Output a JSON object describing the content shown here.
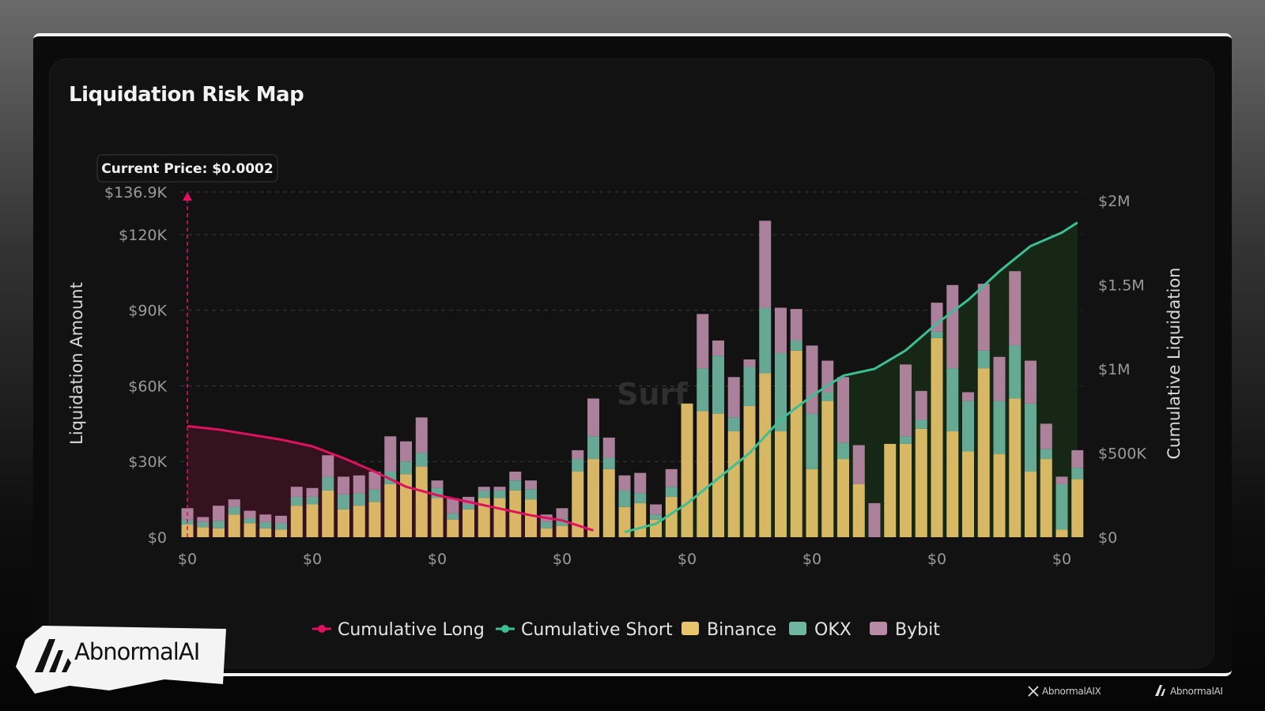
{
  "title": "Liquidation Risk Map",
  "current_price_label": "Current Price: $0.0002",
  "watermark": "Surf",
  "brand": {
    "name": "AbnormalAI",
    "footer_handle": "AbnormalAIX",
    "footer_name": "AbnormalAI"
  },
  "colors": {
    "long": "#e0115f",
    "short": "#3dbf94",
    "binance": "#e8c46c",
    "okx": "#6fb5a0",
    "bybit": "#b98aa6",
    "long_fill": "#3a1420",
    "short_fill": "#172a17"
  },
  "chart_data": {
    "type": "bar",
    "stacked": true,
    "ylabel": "Liquidation Amount",
    "y2label": "Cumulative Liquidation",
    "ylim": [
      0,
      136900
    ],
    "y2lim": [
      0,
      2000000
    ],
    "yticks": [
      {
        "value": 0,
        "label": "$0"
      },
      {
        "value": 30000,
        "label": "$30K"
      },
      {
        "value": 60000,
        "label": "$60K"
      },
      {
        "value": 90000,
        "label": "$90K"
      },
      {
        "value": 120000,
        "label": "$120K"
      },
      {
        "value": 136900,
        "label": "$136.9K"
      }
    ],
    "y2ticks": [
      {
        "value": 0,
        "label": "$0"
      },
      {
        "value": 500000,
        "label": "$500K"
      },
      {
        "value": 1000000,
        "label": "$1M"
      },
      {
        "value": 1500000,
        "label": "$1.5M"
      },
      {
        "value": 2000000,
        "label": "$2M"
      }
    ],
    "xticks": [
      {
        "index": 0,
        "label": "$0"
      },
      {
        "index": 8,
        "label": "$0"
      },
      {
        "index": 16,
        "label": "$0"
      },
      {
        "index": 24,
        "label": "$0"
      },
      {
        "index": 32,
        "label": "$0"
      },
      {
        "index": 40,
        "label": "$0"
      },
      {
        "index": 48,
        "label": "$0"
      },
      {
        "index": 56,
        "label": "$0"
      }
    ],
    "current_price_index": 0,
    "legend_position": "bottom",
    "legend": [
      "Cumulative Long",
      "Cumulative Short",
      "Binance",
      "OKX",
      "Bybit"
    ],
    "series": [
      {
        "name": "Binance",
        "values": [
          5000,
          4000,
          3500,
          9000,
          5500,
          3500,
          3000,
          12500,
          13000,
          18500,
          11000,
          12500,
          14000,
          21000,
          25000,
          28000,
          15500,
          7000,
          11000,
          15500,
          15500,
          18500,
          15000,
          3500,
          4500,
          26000,
          31000,
          27000,
          12000,
          13500,
          7000,
          16000,
          53000,
          50000,
          49000,
          42000,
          52000,
          65000,
          42000,
          74000,
          27000,
          54000,
          31000,
          21000,
          0,
          37000,
          37000,
          43000,
          79000,
          42000,
          34000,
          67000,
          33000,
          55000,
          26000,
          31000,
          3000,
          23000
        ]
      },
      {
        "name": "OKX",
        "values": [
          2000,
          2000,
          3000,
          3000,
          2000,
          2500,
          2500,
          3500,
          3000,
          5500,
          6000,
          5000,
          5000,
          5000,
          5000,
          5500,
          4000,
          2500,
          2000,
          3000,
          3000,
          4000,
          4000,
          2500,
          3000,
          5000,
          9000,
          4500,
          6500,
          4000,
          2000,
          4000,
          0,
          17000,
          23000,
          5500,
          15500,
          26000,
          31000,
          4000,
          22000,
          3500,
          6500,
          0,
          0,
          0,
          3000,
          3500,
          2500,
          25000,
          20000,
          7000,
          21000,
          21000,
          27000,
          4000,
          18000,
          4500
        ]
      },
      {
        "name": "Bybit",
        "values": [
          4500,
          2000,
          6000,
          3000,
          3000,
          3000,
          3000,
          4000,
          3500,
          8500,
          7000,
          7000,
          7000,
          14000,
          8000,
          14000,
          3000,
          6000,
          3000,
          1500,
          1500,
          3500,
          3500,
          3000,
          4000,
          3500,
          15000,
          8000,
          6000,
          8000,
          4000,
          7000,
          0,
          21500,
          6000,
          16000,
          3000,
          34500,
          18000,
          12500,
          27000,
          12500,
          26000,
          15500,
          13500,
          0,
          28500,
          11500,
          11500,
          33000,
          3500,
          26500,
          17500,
          29500,
          17000,
          10000,
          3000,
          7000
        ]
      },
      {
        "name": "Cumulative Long",
        "axis": "y2",
        "x": [
          0,
          2,
          4,
          6,
          8,
          10,
          12,
          14,
          16,
          18,
          20,
          22,
          24,
          26
        ],
        "values": [
          660000,
          640000,
          610000,
          580000,
          540000,
          470000,
          390000,
          300000,
          250000,
          210000,
          170000,
          130000,
          100000,
          40000
        ]
      },
      {
        "name": "Cumulative Short",
        "axis": "y2",
        "x": [
          28,
          30,
          32,
          34,
          36,
          38,
          40,
          42,
          44,
          46,
          48,
          50,
          52,
          54,
          56,
          57
        ],
        "values": [
          30000,
          80000,
          200000,
          350000,
          500000,
          700000,
          840000,
          960000,
          1000000,
          1110000,
          1270000,
          1410000,
          1580000,
          1730000,
          1810000,
          1870000
        ]
      }
    ]
  }
}
